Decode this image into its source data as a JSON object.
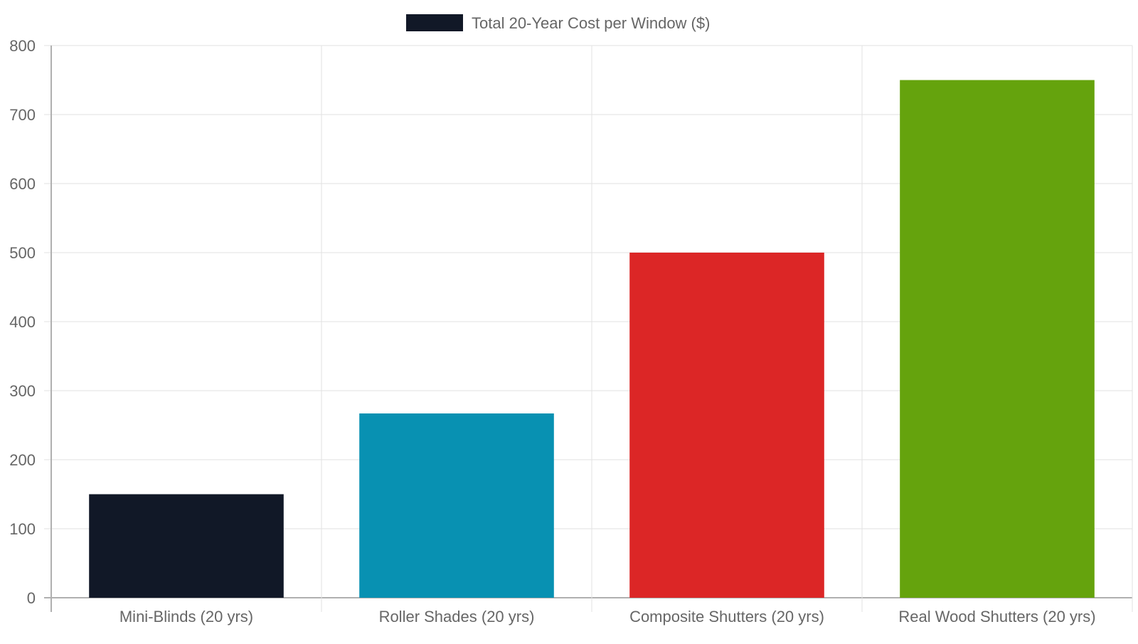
{
  "chart_data": {
    "type": "bar",
    "categories": [
      "Mini-Blinds (20 yrs)",
      "Roller Shades (20 yrs)",
      "Composite Shutters (20 yrs)",
      "Real Wood Shutters (20 yrs)"
    ],
    "series": [
      {
        "name": "Total 20-Year Cost per Window ($)",
        "values": [
          150,
          267,
          500,
          750
        ]
      }
    ],
    "bar_colors": [
      "#111827",
      "#0891b2",
      "#dc2626",
      "#65a30d"
    ],
    "legend_color": "#111827",
    "ylim": [
      0,
      800
    ],
    "yticks": [
      0,
      100,
      200,
      300,
      400,
      500,
      600,
      700,
      800
    ],
    "grid": true,
    "legend_position": "top-center",
    "xlabel": "",
    "ylabel": "",
    "title": ""
  }
}
